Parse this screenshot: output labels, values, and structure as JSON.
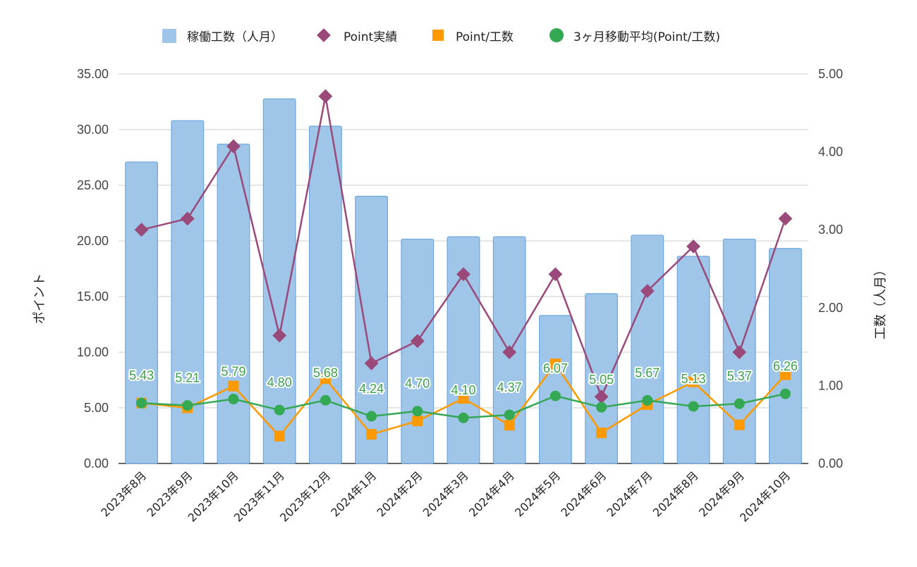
{
  "chart_data": {
    "type": "bar",
    "title": "",
    "categories": [
      "2023年8月",
      "2023年9月",
      "2023年10月",
      "2023年11月",
      "2023年12月",
      "2024年1月",
      "2024年2月",
      "2024年3月",
      "2024年4月",
      "2024年5月",
      "2024年6月",
      "2024年7月",
      "2024年8月",
      "2024年9月",
      "2024年10月"
    ],
    "y_left": {
      "label": "ポイント",
      "ticks": [
        "0.00",
        "5.00",
        "10.00",
        "15.00",
        "20.00",
        "25.00",
        "30.00",
        "35.00"
      ],
      "range": [
        0,
        35
      ]
    },
    "y_right": {
      "label": "工数（人月）",
      "ticks": [
        "0.00",
        "1.00",
        "2.00",
        "3.00",
        "4.00",
        "5.00"
      ],
      "range": [
        0,
        5
      ]
    },
    "legend_position": "top",
    "grid": true,
    "series": [
      {
        "name": "稼働工数（人月）",
        "type": "bar",
        "axis": "right",
        "color": "#9fc5e8",
        "values": [
          3.87,
          4.4,
          4.1,
          4.68,
          4.33,
          3.43,
          2.88,
          2.91,
          2.91,
          1.9,
          2.18,
          2.93,
          2.66,
          2.88,
          2.76
        ]
      },
      {
        "name": "Point実績",
        "type": "line",
        "marker": "diamond",
        "axis": "left",
        "color": "#9a4a7a",
        "values": [
          21.0,
          22.0,
          28.5,
          11.5,
          33.0,
          9.0,
          11.0,
          17.0,
          10.0,
          17.0,
          6.0,
          15.5,
          19.5,
          10.0,
          22.0
        ]
      },
      {
        "name": "Point/工数",
        "type": "line",
        "marker": "square",
        "axis": "left",
        "color": "#ff9900",
        "values": [
          5.43,
          5.0,
          6.95,
          2.46,
          7.62,
          2.62,
          3.82,
          5.84,
          3.44,
          8.95,
          2.75,
          5.29,
          7.33,
          3.47,
          7.97
        ]
      },
      {
        "name": "3ヶ月移動平均(Point/工数)",
        "type": "line",
        "marker": "circle",
        "axis": "left",
        "color": "#34a853",
        "values": [
          5.43,
          5.21,
          5.79,
          4.8,
          5.68,
          4.24,
          4.7,
          4.1,
          4.37,
          6.07,
          5.05,
          5.67,
          5.13,
          5.37,
          6.26
        ],
        "labels": [
          "5.43",
          "5.21",
          "5.79",
          "4.80",
          "5.68",
          "4.24",
          "4.70",
          "4.10",
          "4.37",
          "6.07",
          "5.05",
          "5.67",
          "5.13",
          "5.37",
          "6.26"
        ]
      }
    ]
  }
}
